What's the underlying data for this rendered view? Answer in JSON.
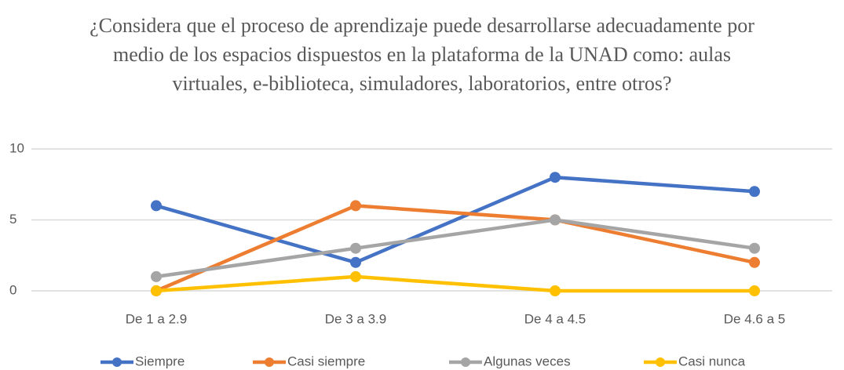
{
  "chart_data": {
    "type": "line",
    "title": "¿Considera que el proceso de aprendizaje puede desarrollarse adecuadamente por medio de los espacios dispuestos en la plataforma de la UNAD como: aulas virtuales, e-biblioteca, simuladores, laboratorios, entre otros?",
    "categories": [
      "De 1 a 2.9",
      "De 3 a 3.9",
      "De 4 a 4.5",
      "De 4.6 a 5"
    ],
    "series": [
      {
        "name": "Siempre",
        "color": "#4472c4",
        "values": [
          6,
          2,
          8,
          7
        ]
      },
      {
        "name": "Casi siempre",
        "color": "#ed7d31",
        "values": [
          0,
          6,
          5,
          2
        ]
      },
      {
        "name": "Algunas veces",
        "color": "#a5a5a5",
        "values": [
          1,
          3,
          5,
          3
        ]
      },
      {
        "name": "Casi nunca",
        "color": "#ffc000",
        "values": [
          0,
          1,
          0,
          0
        ]
      }
    ],
    "ylim": [
      0,
      10
    ],
    "yticks": [
      0,
      5,
      10
    ],
    "grid": true,
    "legend": "bottom"
  }
}
